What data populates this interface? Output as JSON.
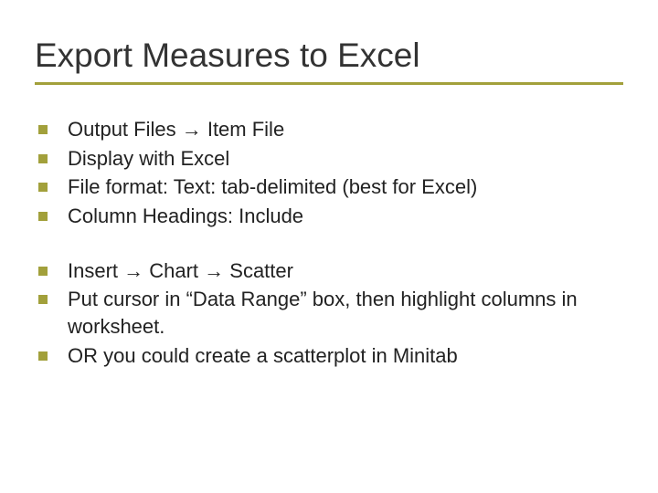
{
  "title": "Export Measures to Excel",
  "accent_color": "#a2a03b",
  "background_color": "#ffffff",
  "title_fontsize": 37,
  "body_fontsize": 22,
  "bullet_size": 10,
  "underline_height": 3,
  "group1": [
    "Output Files → Item File",
    "Display with Excel",
    "File format: Text: tab-delimited (best for Excel)",
    "Column Headings: Include"
  ],
  "group2": [
    "Insert → Chart → Scatter",
    "Put cursor in “Data Range” box, then highlight columns in worksheet.",
    "OR you could create a scatterplot in Minitab"
  ]
}
